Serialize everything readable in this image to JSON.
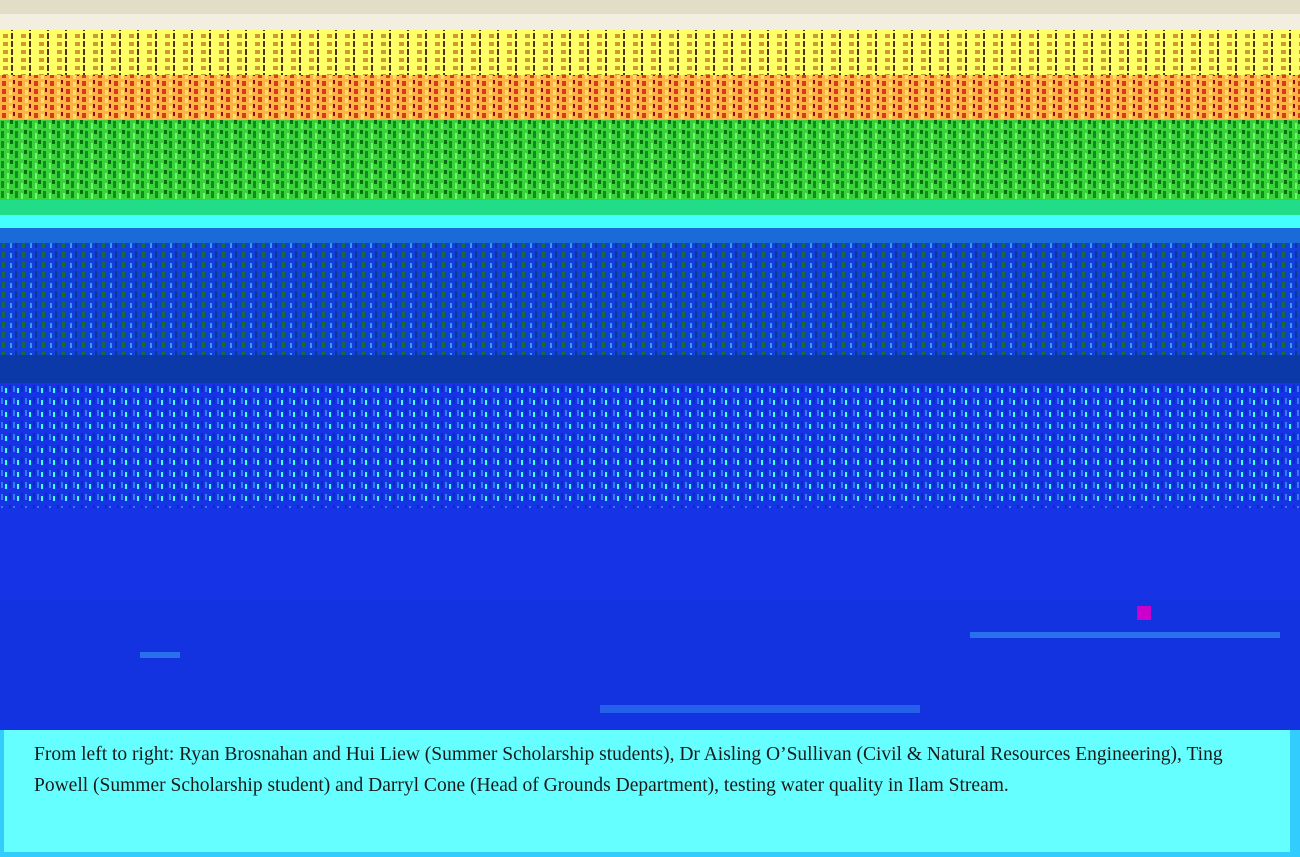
{
  "photo": {
    "icon": "photo-icon",
    "colors": {
      "sky": "#f2efe0",
      "tree_band_1": "#ffff66",
      "tree_band_2": "#ffaa44",
      "foliage": "#33cc33",
      "bank": "#22dd88",
      "water_light": "#1a6bd9",
      "water": "#1633e6",
      "water_dark": "#0b1fb0",
      "highlight": "#44ffff",
      "accent_marker": "#cc00cc"
    }
  },
  "caption": {
    "text": "From left to right: Ryan Brosnahan and Hui Liew (Summer Scholarship students), Dr Aisling O’Sullivan (Civil & Natural Resources Engineering), Ting Powell (Summer Scholarship student) and Darryl Cone (Head of Grounds Department), testing water quality in Ilam Stream.",
    "background": "#66ffff"
  }
}
